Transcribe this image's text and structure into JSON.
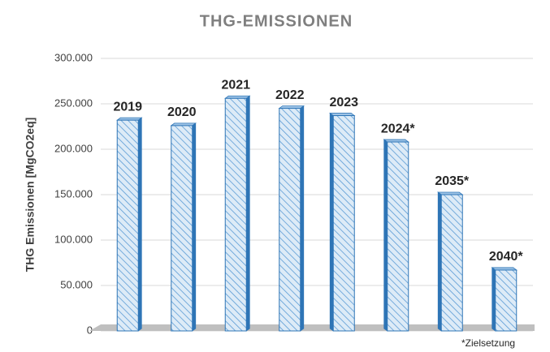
{
  "chart_data": {
    "type": "bar",
    "title": "THG-EMISSIONEN",
    "y_label": "THG Emissionen [MgCO2eq]",
    "footnote": "*Zielsetzung",
    "categories": [
      "2019",
      "2020",
      "2021",
      "2022",
      "2023",
      "2024*",
      "2035*",
      "2040*"
    ],
    "values": [
      232000,
      226000,
      256000,
      245000,
      237000,
      208000,
      150000,
      67000
    ],
    "color": "#2e75b6",
    "ylim": [
      0,
      300000
    ],
    "yticks": [
      0,
      {
        "value": 50000,
        "label": "50.000"
      },
      {
        "value": 100000,
        "label": "100.000"
      },
      {
        "value": 150000,
        "label": "150.000"
      },
      {
        "value": 200000,
        "label": "200.000"
      },
      {
        "value": 250000,
        "label": "250.000"
      },
      {
        "value": 300000,
        "label": "300.000"
      }
    ],
    "grid": true
  }
}
